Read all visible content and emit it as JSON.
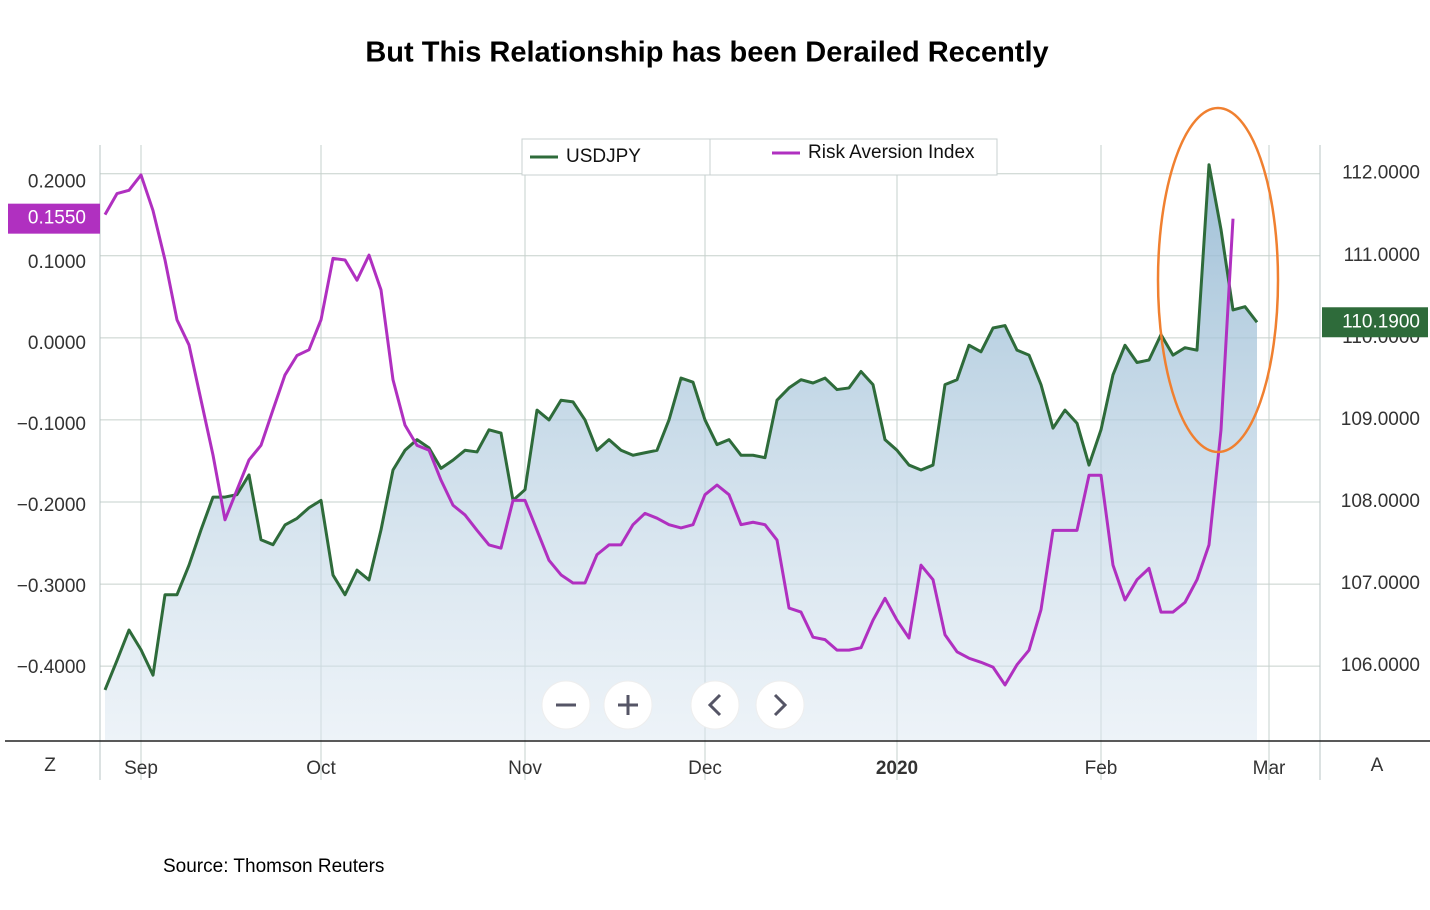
{
  "chart_data": {
    "type": "line",
    "title": "But This Relationship has been Derailed Recently",
    "source": "Source: Thomson Reuters",
    "corner_left": "Z",
    "corner_right": "A",
    "categories": [
      null,
      null,
      null,
      "Sep",
      null,
      null,
      null,
      null,
      null,
      null,
      null,
      null,
      null,
      null,
      null,
      null,
      null,
      null,
      "Oct",
      null,
      null,
      null,
      null,
      null,
      null,
      null,
      null,
      null,
      null,
      null,
      null,
      null,
      null,
      null,
      null,
      "Nov",
      null,
      null,
      null,
      null,
      null,
      null,
      null,
      null,
      null,
      null,
      null,
      null,
      null,
      null,
      "Dec",
      null,
      null,
      null,
      null,
      null,
      null,
      null,
      null,
      null,
      null,
      null,
      null,
      null,
      null,
      null,
      "2020",
      null,
      null,
      null,
      null,
      null,
      null,
      null,
      null,
      null,
      null,
      null,
      null,
      null,
      null,
      null,
      null,
      "Feb",
      null,
      null,
      null,
      null,
      null,
      null,
      null,
      null,
      null,
      null,
      null,
      null,
      null,
      "Mar"
    ],
    "series": [
      {
        "name": "USDJPY",
        "color": "#2e6b3a",
        "axis": "y2",
        "area": true,
        "last_label": "110.1900",
        "values": [
          105.71,
          106.07,
          106.44,
          106.2,
          105.89,
          106.87,
          106.87,
          107.23,
          107.66,
          108.06,
          108.06,
          108.09,
          108.33,
          107.54,
          107.48,
          107.72,
          107.8,
          107.93,
          108.02,
          107.11,
          106.87,
          107.17,
          107.05,
          107.66,
          108.39,
          108.63,
          108.76,
          108.66,
          108.41,
          108.51,
          108.63,
          108.61,
          108.88,
          108.84,
          108.02,
          108.15,
          109.12,
          109.0,
          109.24,
          109.22,
          109.0,
          108.63,
          108.76,
          108.63,
          108.57,
          108.6,
          108.63,
          109.0,
          109.51,
          109.46,
          109.0,
          108.7,
          108.76,
          108.57,
          108.57,
          108.54,
          109.24,
          109.39,
          109.49,
          109.45,
          109.51,
          109.37,
          109.39,
          109.59,
          109.43,
          108.76,
          108.63,
          108.45,
          108.39,
          108.45,
          109.43,
          109.49,
          109.91,
          109.83,
          110.12,
          110.15,
          109.85,
          109.79,
          109.43,
          108.9,
          109.12,
          108.96,
          108.45,
          108.88,
          109.55,
          109.91,
          109.7,
          109.73,
          110.04,
          109.79,
          109.88,
          109.85,
          112.11,
          111.32,
          110.34,
          110.38,
          110.19,
          null
        ]
      },
      {
        "name": "Risk Aversion Index",
        "color": "#b030c0",
        "axis": "y",
        "last_label": "0.1550",
        "values": [
          0.16,
          0.186,
          0.19,
          0.209,
          0.165,
          0.104,
          0.03,
          -0.001,
          -0.069,
          -0.137,
          -0.217,
          -0.18,
          -0.143,
          -0.125,
          -0.081,
          -0.038,
          -0.014,
          -0.007,
          0.03,
          0.106,
          0.104,
          0.079,
          0.11,
          0.067,
          -0.044,
          -0.1,
          -0.125,
          -0.131,
          -0.168,
          -0.199,
          -0.211,
          -0.23,
          -0.248,
          -0.252,
          -0.193,
          -0.193,
          -0.23,
          -0.267,
          -0.285,
          -0.295,
          -0.295,
          -0.26,
          -0.248,
          -0.248,
          -0.223,
          -0.209,
          -0.215,
          -0.223,
          -0.227,
          -0.223,
          -0.186,
          -0.174,
          -0.186,
          -0.223,
          -0.22,
          -0.223,
          -0.242,
          -0.326,
          -0.331,
          -0.362,
          -0.365,
          -0.378,
          -0.378,
          -0.375,
          -0.341,
          -0.314,
          -0.341,
          -0.363,
          -0.273,
          -0.291,
          -0.359,
          -0.38,
          -0.388,
          -0.393,
          -0.399,
          -0.421,
          -0.396,
          -0.378,
          -0.328,
          -0.23,
          -0.23,
          -0.23,
          -0.162,
          -0.162,
          -0.273,
          -0.316,
          -0.291,
          -0.277,
          -0.331,
          -0.331,
          -0.319,
          -0.291,
          -0.248,
          -0.106,
          0.155,
          null,
          null,
          null
        ]
      }
    ],
    "ylim": [
      -0.489,
      0.246
    ],
    "yticks": [
      {
        "value": 0.2,
        "label": "0.2000"
      },
      {
        "value": 0.1,
        "label": "0.1000"
      },
      {
        "value": 0,
        "label": "0.0000"
      },
      {
        "value": -0.1,
        "label": "−0.1000"
      },
      {
        "value": -0.2,
        "label": "−0.2000"
      },
      {
        "value": -0.3,
        "label": "−0.3000"
      },
      {
        "value": -0.4,
        "label": "−0.4000"
      }
    ],
    "y2lim": [
      105.1,
      112.35
    ],
    "y2ticks": [
      {
        "value": 112,
        "label": "112.0000"
      },
      {
        "value": 111,
        "label": "111.0000"
      },
      {
        "value": 110,
        "label": "110.0000"
      },
      {
        "value": 109,
        "label": "109.0000"
      },
      {
        "value": 108,
        "label": "108.0000"
      },
      {
        "value": 107,
        "label": "107.0000"
      },
      {
        "value": 106,
        "label": "106.0000"
      }
    ],
    "grid": true
  }
}
